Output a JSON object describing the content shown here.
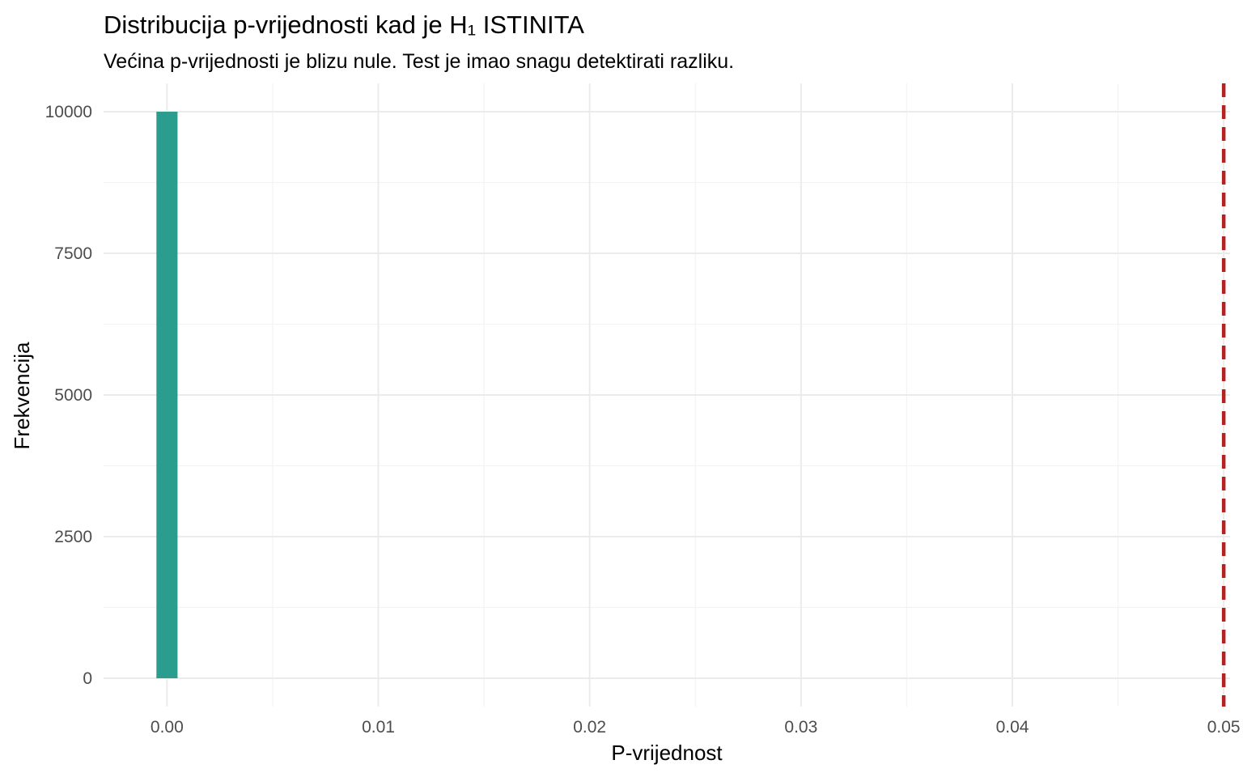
{
  "chart_data": {
    "type": "bar",
    "title": "Distribucija p-vrijednosti kad je H₁ ISTINITA",
    "subtitle": "Većina p-vrijednosti je blizu nule. Test je imao snagu detektirati razliku.",
    "xlabel": "P-vrijednost",
    "ylabel": "Frekvencija",
    "xlim": [
      -0.003,
      0.0503
    ],
    "ylim": [
      -500,
      10500
    ],
    "x_ticks": [
      0.0,
      0.01,
      0.02,
      0.03,
      0.04,
      0.05
    ],
    "x_tick_labels": [
      "0.00",
      "0.01",
      "0.02",
      "0.03",
      "0.04",
      "0.05"
    ],
    "y_ticks": [
      0,
      2500,
      5000,
      7500,
      10000
    ],
    "y_tick_labels": [
      "0",
      "2500",
      "5000",
      "7500",
      "10000"
    ],
    "bins": [
      {
        "x_start": -0.0005,
        "x_end": 0.0005,
        "count": 10000
      },
      {
        "x_start": 0.0005,
        "x_end": 0.0503,
        "count": 0
      }
    ],
    "reference_line": {
      "x": 0.05,
      "style": "dashed",
      "color": "#b22222"
    },
    "bar_color": "#2a9d8f",
    "grid": true,
    "legend": "none"
  }
}
